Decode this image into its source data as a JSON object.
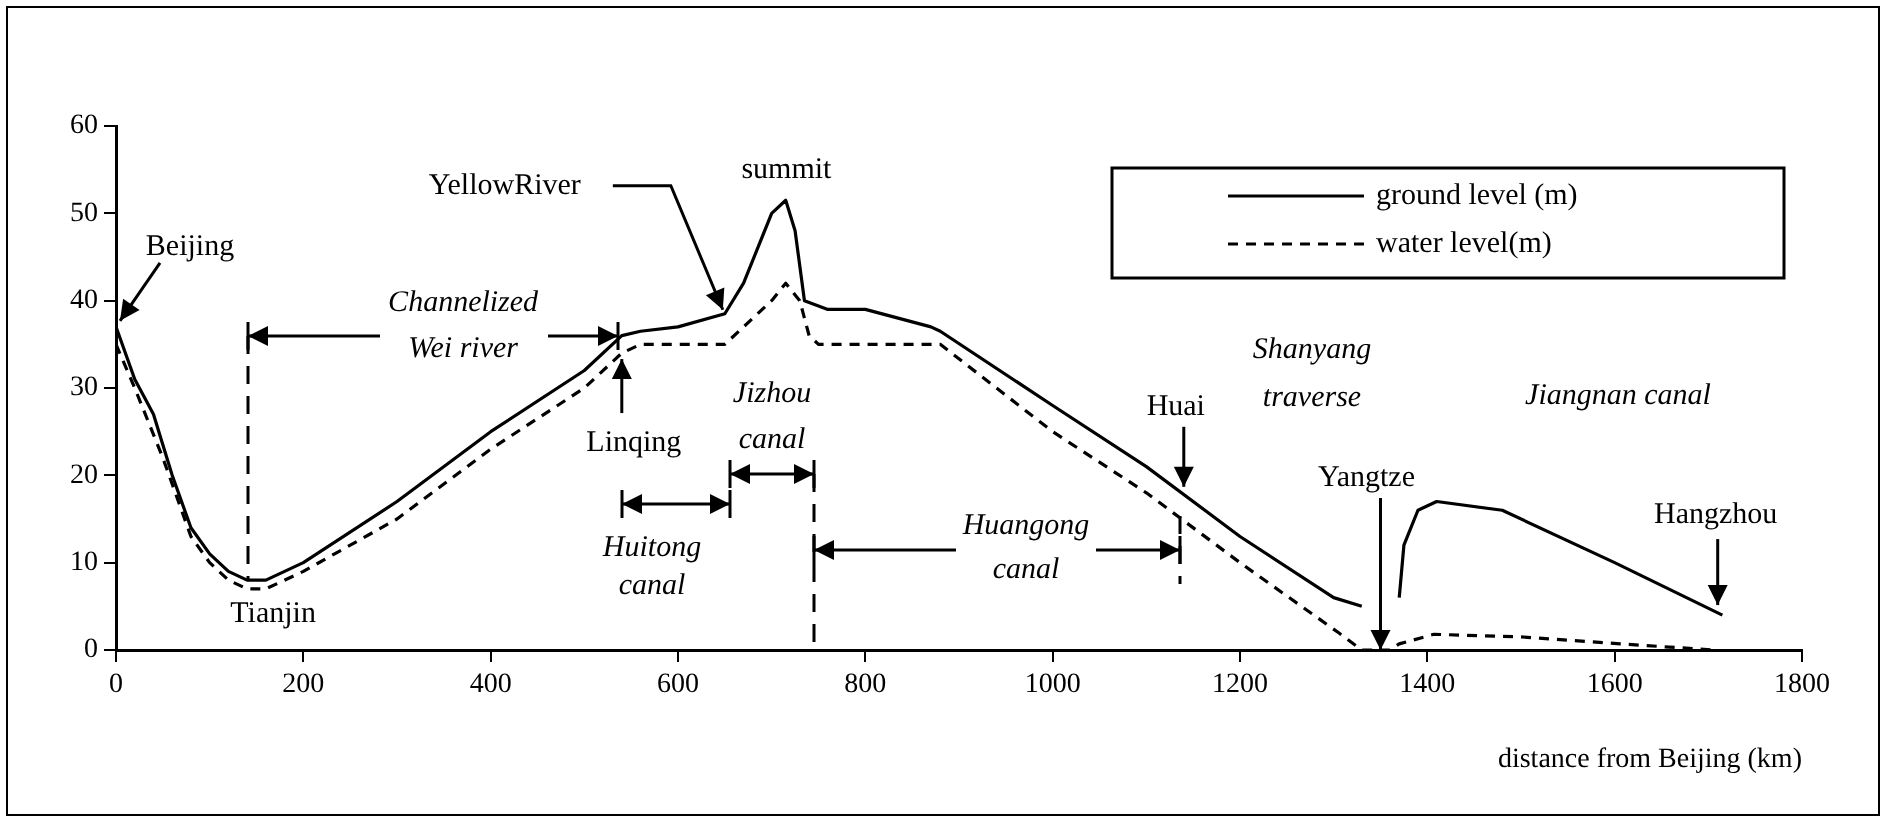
{
  "chart_data": {
    "type": "line",
    "xlabel": "distance from Beijing (km)",
    "xlim": [
      0,
      1800
    ],
    "xticks": [
      0,
      200,
      400,
      600,
      800,
      1000,
      1200,
      1400,
      1600,
      1800
    ],
    "ylim": [
      0,
      60
    ],
    "yticks": [
      0,
      10,
      20,
      30,
      40,
      50,
      60
    ],
    "grid": false,
    "legend": "top right",
    "marker": "none",
    "series": [
      {
        "name": "ground level (m)",
        "color": "#000000",
        "line_style": "solid",
        "x": [
          0,
          20,
          40,
          60,
          80,
          100,
          120,
          140,
          160,
          200,
          300,
          400,
          500,
          540,
          560,
          600,
          650,
          670,
          700,
          715,
          725,
          735,
          760,
          800,
          870,
          880,
          1000,
          1100,
          1200,
          1300,
          1330,
          1350,
          1370,
          1375,
          1390,
          1410,
          1480,
          1600,
          1715
        ],
        "values": [
          37,
          31,
          27,
          20,
          14,
          11,
          9,
          8,
          8,
          10,
          17,
          25,
          32,
          36,
          36.5,
          37,
          38.5,
          42,
          50,
          51.5,
          48,
          40,
          39,
          39,
          37,
          36.5,
          28,
          21,
          13,
          6,
          5,
          null,
          6,
          12,
          16,
          17,
          16,
          10,
          4
        ]
      },
      {
        "name": "water level(m)",
        "color": "#000000",
        "line_style": "dashed",
        "x": [
          0,
          20,
          50,
          80,
          100,
          120,
          140,
          160,
          200,
          300,
          400,
          500,
          540,
          560,
          600,
          650,
          670,
          700,
          715,
          730,
          740,
          750,
          880,
          1000,
          1100,
          1200,
          1305,
          1330,
          1360,
          1370,
          1407,
          1500,
          1606,
          1706
        ],
        "values": [
          35,
          30,
          22,
          13,
          10,
          8,
          7,
          7,
          9,
          15,
          23,
          30,
          34,
          35,
          35,
          35,
          37,
          40,
          42,
          40,
          36,
          35,
          35,
          25,
          18,
          10,
          2,
          0,
          0,
          0.7,
          1.8,
          1.5,
          0.7,
          0
        ]
      }
    ],
    "annotations": [
      {
        "text": "Beijing",
        "x": 0,
        "y": 37
      },
      {
        "text": "Tianjin",
        "x": 140,
        "y": 8
      },
      {
        "text": "YellowRiver",
        "x": 650,
        "y": 38.5
      },
      {
        "text": "summit",
        "x": 720,
        "y": 52
      },
      {
        "text": "Linqing",
        "x": 540,
        "y": 34
      },
      {
        "text": "Huai",
        "x": 1140,
        "y": 18
      },
      {
        "text": "Yangtze",
        "x": 1350,
        "y": 0
      },
      {
        "text": "Hangzhou",
        "x": 1710,
        "y": 4
      },
      {
        "text": "Channelized Wei river",
        "x": 535,
        "y": 36
      },
      "Huitong canal",
      "Jizhou canal",
      "Huangong canal",
      "Shanyang traverse",
      "Jiangnan canal"
    ]
  }
}
